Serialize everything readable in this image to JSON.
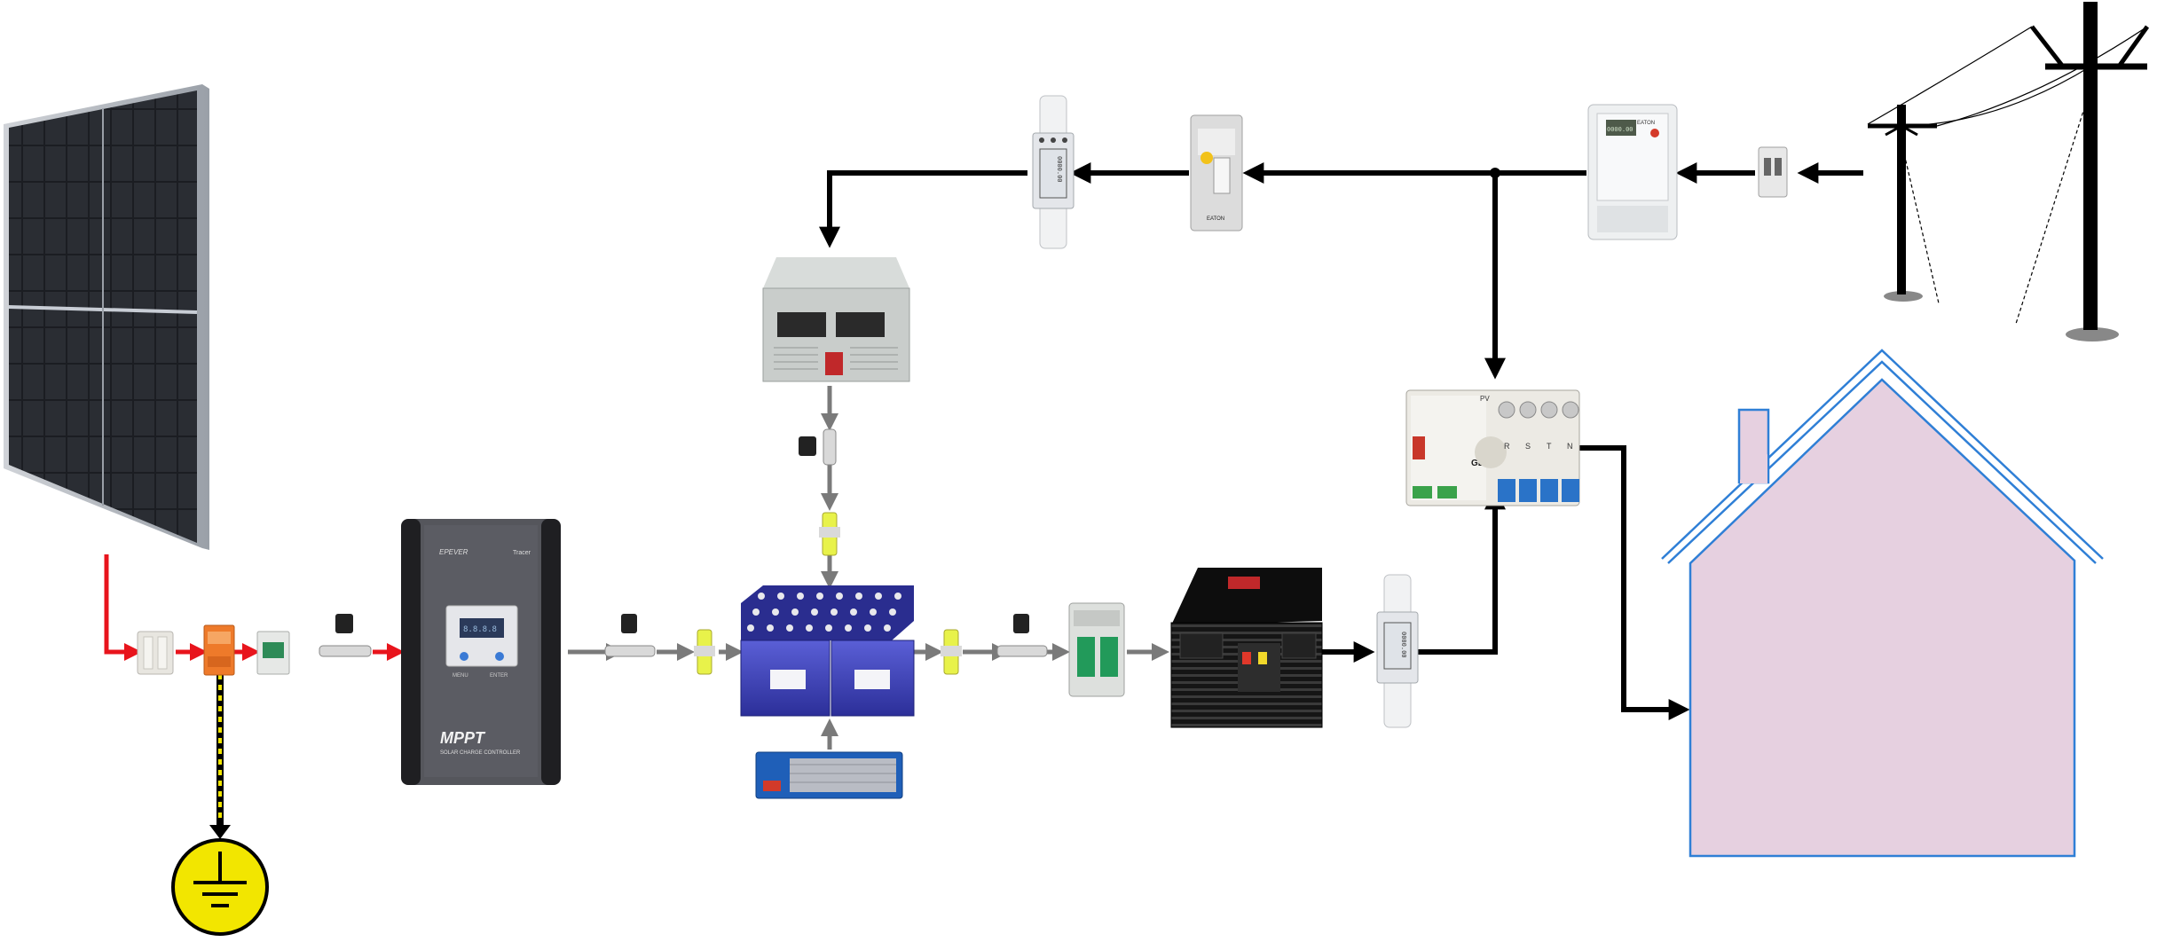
{
  "colors": {
    "dc_wire": "#e8141c",
    "ac_wire": "#000000",
    "battery_wire": "#7a7a7a",
    "ground_dot": "#f2e600",
    "house_fill": "#e6d0e0",
    "house_stroke": "#2f7fd6",
    "battery_blue": "#3b3fb8",
    "controller_body": "#4a4a4e",
    "inverter_body": "#1c1c1c"
  },
  "labels": {
    "controller_title": "MPPT",
    "controller_subtitle": "SOLAR CHARGE CONTROLLER",
    "controller_brand": "EPEVER",
    "controller_model": "Tracer",
    "controller_btn_left": "MENU",
    "controller_btn_right": "ENTER",
    "ats_brand": "GEYA",
    "ats_pv": "PV",
    "ats_r": "R",
    "ats_s": "S",
    "ats_t": "T",
    "ats_n": "N",
    "rcd_brand": "EATON",
    "meter_left_reading": "0000.00",
    "meter_right_reading": "0000.00",
    "meter_inverter_reading": "0000.00",
    "meter_eaton": "EATON"
  },
  "icons": {
    "solar_panel": "solar-panel-icon",
    "ground": "ground-icon",
    "utility_pole": "utility-pole-icon",
    "house": "house-icon"
  }
}
